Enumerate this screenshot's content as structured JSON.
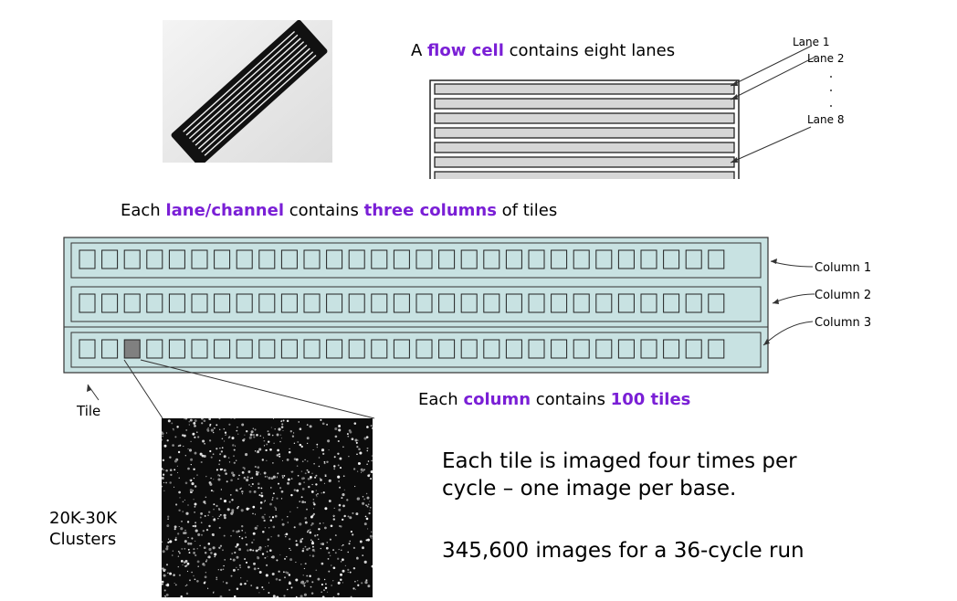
{
  "flowcell_title": {
    "prefix": "A ",
    "highlight": "flow cell",
    "suffix": " contains eight lanes"
  },
  "lane_labels": {
    "lane1": "Lane 1",
    "lane2": "Lane 2",
    "lane8": "Lane 8"
  },
  "lane_count": 8,
  "lane_section_title": {
    "p1": "Each ",
    "h1": "lane/channel",
    "p2": " contains ",
    "h2": "three columns",
    "p3": " of tiles"
  },
  "columns": {
    "labels": [
      "Column 1",
      "Column 2",
      "Column 3"
    ],
    "tiles_per_row_drawn": 29
  },
  "column_caption": {
    "p1": "Each ",
    "h1": "column",
    "p2": " contains ",
    "h2": "100 tiles"
  },
  "tile_label": "Tile",
  "clusters_label": {
    "line1": "20K-30K",
    "line2": "Clusters"
  },
  "imaging_text": {
    "line1": "Each tile is imaged four times per",
    "line2": "cycle – one image per base."
  },
  "run_text": "345,600 images for a 36-cycle run",
  "colors": {
    "highlight": "#7a1fd6",
    "lane_fill": "#d6d6d6",
    "lane8_fill": "#c8e2e2",
    "channel_fill": "#c8e2e2",
    "selected_tile": "#808080"
  }
}
